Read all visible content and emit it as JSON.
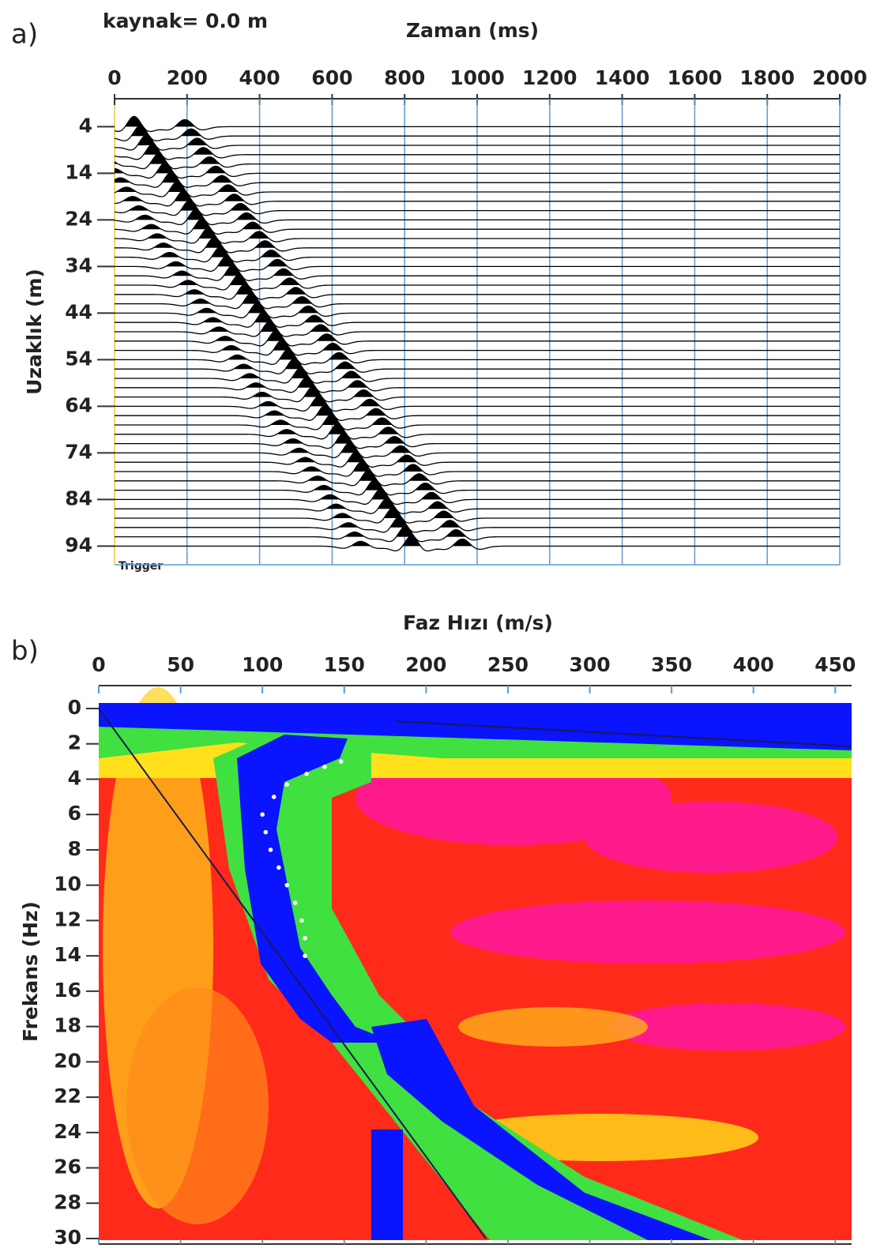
{
  "chart_data": [
    {
      "type": "wiggle",
      "panel_label": "a)",
      "title": "Zaman (ms)",
      "annotations": [
        "kaynak= 0.0 m",
        "Trigger"
      ],
      "y_label": "Uzaklık (m)",
      "offsets": [
        4,
        6,
        8,
        10,
        12,
        14,
        16,
        18,
        20,
        22,
        24,
        26,
        28,
        30,
        32,
        34,
        36,
        38,
        40,
        42,
        44,
        46,
        48,
        50,
        52,
        54,
        56,
        58,
        60,
        62,
        64,
        66,
        68,
        70,
        72,
        74,
        76,
        78,
        80,
        82,
        84,
        86,
        88,
        90,
        92,
        94
      ],
      "values": [
        54,
        71,
        88,
        105,
        122,
        139,
        156,
        173,
        190,
        207,
        224,
        241,
        258,
        275,
        292,
        309,
        326,
        343,
        360,
        377,
        394,
        411,
        428,
        445,
        462,
        479,
        496,
        513,
        530,
        547,
        564,
        581,
        598,
        615,
        632,
        649,
        666,
        683,
        700,
        717,
        734,
        751,
        768,
        785,
        802,
        819
      ],
      "xlim": [
        0,
        2000
      ],
      "xticks": [
        0,
        200,
        400,
        600,
        800,
        1000,
        1200,
        1400,
        1600,
        1800,
        2000
      ],
      "ylim": [
        -2,
        98
      ],
      "yticks": [
        4,
        14,
        24,
        34,
        44,
        54,
        64,
        74,
        84,
        94
      ],
      "grid": true,
      "grid_color": "#5b9bd5",
      "color": "#000000"
    },
    {
      "type": "scatter",
      "panel_label": "b)",
      "title": "Faz Hızı (m/s)",
      "y_label": "Frekans (Hz)",
      "x": [
        148,
        138,
        127,
        115,
        107,
        100,
        102,
        105,
        110,
        115,
        120,
        124,
        126,
        126
      ],
      "values": [
        3,
        3.3,
        3.7,
        4.3,
        5,
        6,
        7,
        8,
        9,
        10,
        11,
        12,
        13,
        14
      ],
      "xlim": [
        0,
        460
      ],
      "xticks": [
        0,
        50,
        100,
        150,
        200,
        250,
        300,
        350,
        400,
        450
      ],
      "ylim": [
        0,
        30
      ],
      "yticks": [
        0,
        2,
        4,
        6,
        8,
        10,
        12,
        14,
        16,
        18,
        20,
        22,
        24,
        26,
        28,
        30
      ],
      "color": "#ffffff"
    }
  ]
}
